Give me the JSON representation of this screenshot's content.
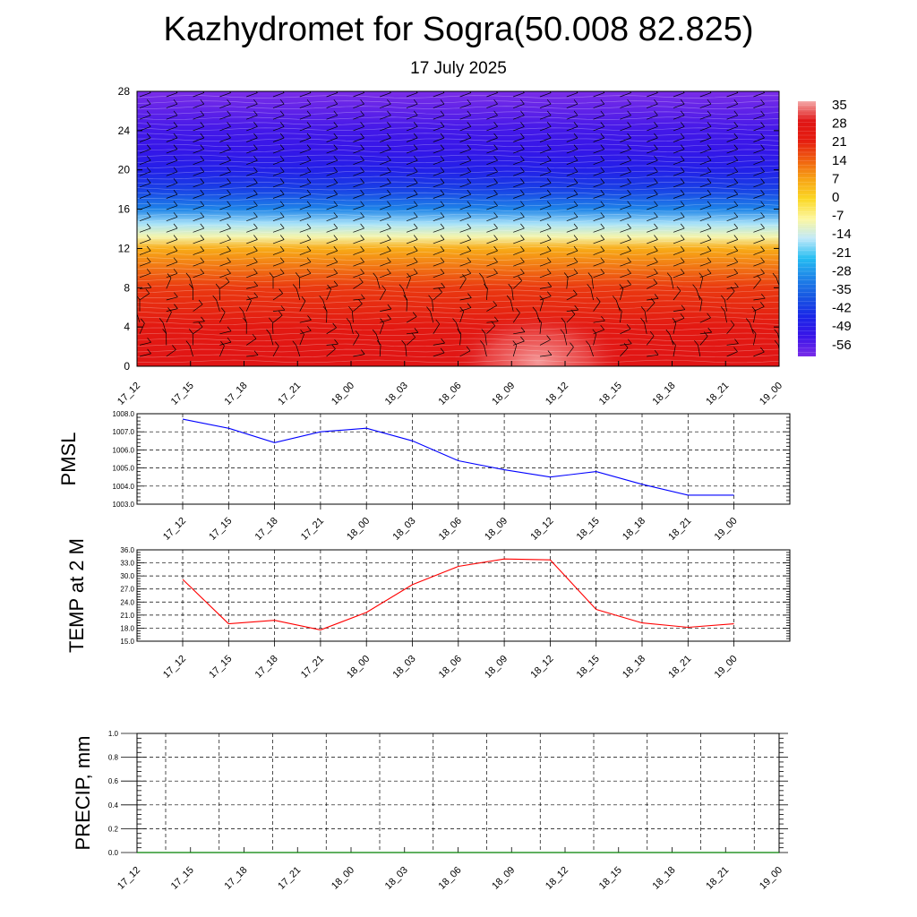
{
  "header": {
    "title": "Kazhydromet for Sogra(50.008 82.825)",
    "subtitle": "17 July 2025"
  },
  "chart_data": [
    {
      "type": "heatmap",
      "x_tick_labels": [
        "17_12",
        "17_15",
        "17_18",
        "17_21",
        "18_00",
        "18_03",
        "18_06",
        "18_09",
        "18_12",
        "18_15",
        "18_18",
        "18_21",
        "19_00"
      ],
      "y_tick_labels": [
        "0",
        "4",
        "8",
        "12",
        "16",
        "20",
        "24",
        "28"
      ],
      "ylim": [
        0,
        28
      ],
      "colorbar_labels": [
        "35",
        "28",
        "21",
        "14",
        "7",
        "0",
        "-7",
        "-14",
        "-21",
        "-28",
        "-35",
        "-42",
        "-49",
        "-56"
      ],
      "colorbar_values": [
        35,
        28,
        21,
        14,
        7,
        0,
        -7,
        -14,
        -21,
        -28,
        -35,
        -42,
        -49,
        -56
      ],
      "colorbar_colors": [
        "#f4a9a9",
        "#e01515",
        "#e51c10",
        "#f06010",
        "#f7a515",
        "#fbd825",
        "#fdf7a0",
        "#bfe9f9",
        "#25bdf2",
        "#1e84e8",
        "#1755e2",
        "#1a25e8",
        "#3a14e8",
        "#7a2de8"
      ],
      "level_profile_c": [
        {
          "height": 0,
          "value": 28
        },
        {
          "height": 4,
          "value": 24
        },
        {
          "height": 8,
          "value": 18
        },
        {
          "height": 12,
          "value": 6
        },
        {
          "height": 13.2,
          "value": -8
        },
        {
          "height": 14.5,
          "value": -15
        },
        {
          "height": 16,
          "value": -28
        },
        {
          "height": 18,
          "value": -38
        },
        {
          "height": 20,
          "value": -44
        },
        {
          "height": 22,
          "value": -48
        },
        {
          "height": 24,
          "value": -50
        },
        {
          "height": 26,
          "value": -53
        },
        {
          "height": 28,
          "value": -56
        }
      ],
      "notes": "Wind barbs overlaid on temperature cross-section"
    },
    {
      "type": "line",
      "ylabel": "PMSL",
      "x": [
        "17_12",
        "17_15",
        "17_18",
        "17_21",
        "18_00",
        "18_03",
        "18_06",
        "18_09",
        "18_12",
        "18_15",
        "18_18",
        "18_21",
        "19_00"
      ],
      "y_tick_labels": [
        "1003.0",
        "1004.0",
        "1005.0",
        "1006.0",
        "1007.0",
        "1008.0"
      ],
      "ylim": [
        1003,
        1008
      ],
      "series": [
        {
          "values": [
            1007.7,
            1007.2,
            1006.4,
            1007.0,
            1007.2,
            1006.5,
            1005.4,
            1004.9,
            1004.5,
            1004.8,
            1004.1,
            1003.5,
            1003.5
          ],
          "color": "#0000ff"
        }
      ]
    },
    {
      "type": "line",
      "ylabel": "TEMP at 2 M",
      "x": [
        "17_12",
        "17_15",
        "17_18",
        "17_21",
        "18_00",
        "18_03",
        "18_06",
        "18_09",
        "18_12",
        "18_15",
        "18_18",
        "18_21",
        "19_00"
      ],
      "y_tick_labels": [
        "15.0",
        "18.0",
        "21.0",
        "24.0",
        "27.0",
        "30.0",
        "33.0",
        "36.0"
      ],
      "ylim": [
        15,
        36
      ],
      "series": [
        {
          "values": [
            29.2,
            19.0,
            19.8,
            17.6,
            21.6,
            28.0,
            32.2,
            33.9,
            33.7,
            22.3,
            19.2,
            18.2,
            19.0
          ],
          "color": "#ff0000"
        }
      ]
    },
    {
      "type": "line",
      "ylabel": "PRECIP, mm",
      "x_tick_labels": [
        "17_12",
        "17_15",
        "17_18",
        "17_21",
        "18_00",
        "18_03",
        "18_06",
        "18_09",
        "18_12",
        "18_15",
        "18_18",
        "18_21",
        "19_00"
      ],
      "y_tick_labels": [
        "0.0",
        "0.2",
        "0.4",
        "0.6",
        "0.8",
        "1.0"
      ],
      "ylim": [
        0,
        1
      ],
      "series": [
        {
          "values": [
            0,
            0,
            0,
            0,
            0,
            0,
            0,
            0,
            0,
            0,
            0,
            0,
            0
          ],
          "color": "#008000"
        }
      ]
    }
  ]
}
